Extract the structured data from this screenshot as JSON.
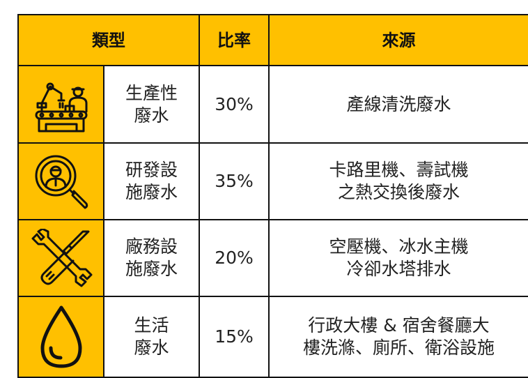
{
  "table": {
    "header": [
      "類型",
      "比率",
      "來源"
    ],
    "rows": [
      {
        "type": [
          "生產性",
          "廢水"
        ],
        "ratio": "30%",
        "source": [
          "產線清洗廢水"
        ]
      },
      {
        "type": [
          "研發設",
          "施廢水"
        ],
        "ratio": "35%",
        "source": [
          "卡路里機、壽試機",
          "之熱交換後廢水"
        ]
      },
      {
        "type": [
          "廠務設",
          "施廢水"
        ],
        "ratio": "20%",
        "source": [
          "空壓機、冰水主機",
          "冷卻水塔排水"
        ]
      },
      {
        "type": [
          "生活",
          "廢水"
        ],
        "ratio": "15%",
        "source": [
          "行政大樓 & 宿舍餐廳大",
          "樓洗滌、廁所、衛浴設施"
        ]
      }
    ]
  }
}
